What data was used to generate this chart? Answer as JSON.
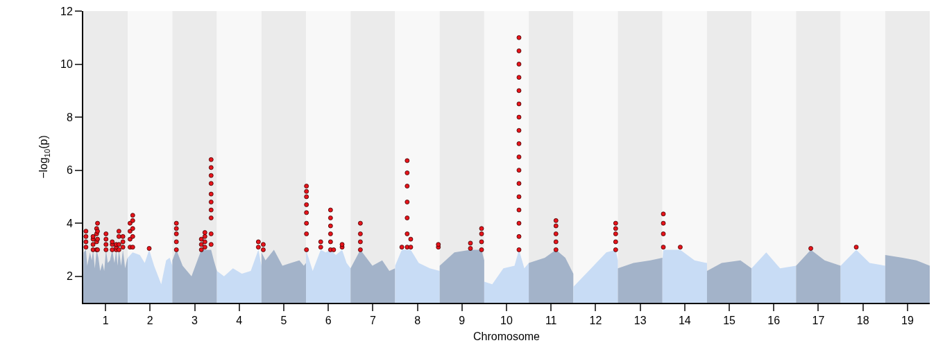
{
  "chart_data": {
    "type": "scatter",
    "xlabel": "Chromosome",
    "ylabel": "−log$_{10}$(p)",
    "xlim": [
      0.5,
      19.5
    ],
    "ylim": [
      1,
      12
    ],
    "xticks": [
      1,
      2,
      3,
      4,
      5,
      6,
      7,
      8,
      9,
      10,
      11,
      12,
      13,
      14,
      15,
      16,
      17,
      18,
      19
    ],
    "yticks": [
      2,
      4,
      6,
      8,
      10,
      12
    ],
    "grid": false,
    "bands": [
      {
        "axis": "x",
        "from": 0.5,
        "to": 1.5,
        "color": "#ebebeb"
      },
      {
        "axis": "x",
        "from": 1.5,
        "to": 2.5,
        "color": "#f8f8f8"
      },
      {
        "axis": "x",
        "from": 2.5,
        "to": 3.5,
        "color": "#ebebeb"
      },
      {
        "axis": "x",
        "from": 3.5,
        "to": 4.5,
        "color": "#f8f8f8"
      },
      {
        "axis": "x",
        "from": 4.5,
        "to": 5.5,
        "color": "#ebebeb"
      },
      {
        "axis": "x",
        "from": 5.5,
        "to": 6.5,
        "color": "#f8f8f8"
      },
      {
        "axis": "x",
        "from": 6.5,
        "to": 7.5,
        "color": "#ebebeb"
      },
      {
        "axis": "x",
        "from": 7.5,
        "to": 8.5,
        "color": "#f8f8f8"
      },
      {
        "axis": "x",
        "from": 8.5,
        "to": 9.5,
        "color": "#ebebeb"
      },
      {
        "axis": "x",
        "from": 9.5,
        "to": 10.5,
        "color": "#f8f8f8"
      },
      {
        "axis": "x",
        "from": 10.5,
        "to": 11.5,
        "color": "#ebebeb"
      },
      {
        "axis": "x",
        "from": 11.5,
        "to": 12.5,
        "color": "#f8f8f8"
      },
      {
        "axis": "x",
        "from": 12.5,
        "to": 13.5,
        "color": "#ebebeb"
      },
      {
        "axis": "x",
        "from": 13.5,
        "to": 14.5,
        "color": "#f8f8f8"
      },
      {
        "axis": "x",
        "from": 14.5,
        "to": 15.5,
        "color": "#ebebeb"
      },
      {
        "axis": "x",
        "from": 15.5,
        "to": 16.5,
        "color": "#f8f8f8"
      },
      {
        "axis": "x",
        "from": 16.5,
        "to": 17.5,
        "color": "#ebebeb"
      },
      {
        "axis": "x",
        "from": 17.5,
        "to": 18.5,
        "color": "#f8f8f8"
      },
      {
        "axis": "x",
        "from": 18.5,
        "to": 19.5,
        "color": "#ebebeb"
      }
    ],
    "series": [
      {
        "type": "area",
        "color": "#a3b3c9",
        "x": [
          0.5,
          0.51,
          0.56,
          0.59,
          0.65,
          0.69,
          0.72,
          0.76,
          0.8,
          0.84,
          0.88,
          0.93,
          0.97,
          1.01,
          1.05,
          1.1,
          1.15,
          1.2,
          1.24,
          1.27,
          1.3,
          1.35,
          1.39,
          1.44,
          1.49,
          1.5
        ],
        "values": [
          1.5,
          2.9,
          3.0,
          2.4,
          2.9,
          2.6,
          3.0,
          2.3,
          3.0,
          2.7,
          2.2,
          2.5,
          2.2,
          3.0,
          2.5,
          2.6,
          3.0,
          2.5,
          3.0,
          2.4,
          3.0,
          2.4,
          3.0,
          2.3,
          2.7,
          2.6
        ]
      },
      {
        "type": "area",
        "color": "#c8dcf5",
        "x": [
          1.5,
          1.61,
          1.77,
          1.88,
          1.98,
          2.09,
          2.25,
          2.36,
          2.44,
          2.5
        ],
        "values": [
          2.7,
          2.9,
          2.8,
          2.5,
          3.0,
          2.4,
          1.7,
          2.6,
          2.7,
          2.4
        ]
      },
      {
        "type": "area",
        "color": "#a3b3c9",
        "x": [
          2.5,
          2.59,
          2.73,
          2.93,
          3.15,
          3.23,
          3.37,
          3.43,
          3.5
        ],
        "values": [
          2.6,
          3.0,
          2.4,
          2.0,
          3.0,
          3.0,
          3.0,
          2.6,
          2.2
        ]
      },
      {
        "type": "area",
        "color": "#c8dcf5",
        "x": [
          3.5,
          3.66,
          3.86,
          4.06,
          4.26,
          4.43,
          4.5
        ],
        "values": [
          2.2,
          2.0,
          2.3,
          2.1,
          2.2,
          3.0,
          2.4
        ]
      },
      {
        "type": "area",
        "color": "#a3b3c9",
        "x": [
          4.5,
          4.59,
          4.78,
          4.97,
          5.16,
          5.35,
          5.45,
          5.5
        ],
        "values": [
          2.9,
          2.6,
          3.0,
          2.4,
          2.5,
          2.6,
          2.4,
          2.5
        ]
      },
      {
        "type": "area",
        "color": "#c8dcf5",
        "x": [
          5.5,
          5.65,
          5.83,
          5.94,
          6.05,
          6.17,
          6.31,
          6.41,
          6.5
        ],
        "values": [
          3.0,
          2.2,
          3.0,
          2.9,
          3.0,
          2.8,
          3.0,
          2.5,
          2.3
        ]
      },
      {
        "type": "area",
        "color": "#a3b3c9",
        "x": [
          6.5,
          6.72,
          6.99,
          7.21,
          7.37,
          7.5
        ],
        "values": [
          2.3,
          3.0,
          2.4,
          2.6,
          2.2,
          2.3
        ]
      },
      {
        "type": "area",
        "color": "#c8dcf5",
        "x": [
          7.5,
          7.65,
          7.77,
          7.85,
          8.03,
          8.28,
          8.5
        ],
        "values": [
          2.4,
          3.0,
          3.0,
          3.0,
          2.5,
          2.3,
          2.2
        ]
      },
      {
        "type": "area",
        "color": "#a3b3c9",
        "x": [
          8.5,
          8.83,
          9.19,
          9.44,
          9.5
        ],
        "values": [
          2.4,
          2.9,
          3.0,
          3.0,
          2.6
        ]
      },
      {
        "type": "area",
        "color": "#c8dcf5",
        "x": [
          9.5,
          9.68,
          9.93,
          10.18,
          10.28,
          10.4,
          10.5
        ],
        "values": [
          1.8,
          1.7,
          2.3,
          2.4,
          3.0,
          2.3,
          2.5
        ]
      },
      {
        "type": "area",
        "color": "#a3b3c9",
        "x": [
          10.5,
          10.86,
          11.11,
          11.32,
          11.5
        ],
        "values": [
          2.5,
          2.7,
          3.0,
          2.7,
          2.1
        ]
      },
      {
        "type": "area",
        "color": "#c8dcf5",
        "x": [
          11.5,
          11.9,
          12.24,
          12.45,
          12.5
        ],
        "values": [
          1.6,
          2.3,
          2.9,
          3.0,
          2.6
        ]
      },
      {
        "type": "area",
        "color": "#a3b3c9",
        "x": [
          12.5,
          12.85,
          13.23,
          13.5
        ],
        "values": [
          2.3,
          2.5,
          2.6,
          2.7
        ]
      },
      {
        "type": "area",
        "color": "#c8dcf5",
        "x": [
          13.5,
          13.52,
          13.9,
          14.22,
          14.5
        ],
        "values": [
          2.6,
          3.0,
          3.0,
          2.6,
          2.5
        ]
      },
      {
        "type": "area",
        "color": "#a3b3c9",
        "x": [
          14.5,
          14.83,
          15.25,
          15.5
        ],
        "values": [
          2.2,
          2.5,
          2.6,
          2.3
        ]
      },
      {
        "type": "area",
        "color": "#c8dcf5",
        "x": [
          15.5,
          15.83,
          16.14,
          16.5
        ],
        "values": [
          2.3,
          2.9,
          2.3,
          2.4
        ]
      },
      {
        "type": "area",
        "color": "#a3b3c9",
        "x": [
          16.5,
          16.83,
          17.14,
          17.5
        ],
        "values": [
          2.4,
          3.0,
          2.6,
          2.4
        ]
      },
      {
        "type": "area",
        "color": "#c8dcf5",
        "x": [
          17.5,
          17.85,
          18.15,
          18.5
        ],
        "values": [
          2.4,
          3.0,
          2.5,
          2.4
        ]
      },
      {
        "type": "area",
        "color": "#a3b3c9",
        "x": [
          18.5,
          18.89,
          19.2,
          19.5
        ],
        "values": [
          2.8,
          2.7,
          2.6,
          2.4
        ]
      },
      {
        "color": "#e8141b",
        "marker": "circle",
        "x": [
          0.56,
          0.56,
          0.56,
          0.56,
          0.72,
          0.72,
          0.72,
          0.72,
          0.8,
          0.8,
          0.8,
          0.8,
          0.82,
          0.82,
          0.82,
          0.82,
          1.01,
          1.01,
          1.01,
          1.01,
          1.15,
          1.15,
          1.15,
          1.24,
          1.24,
          1.24,
          1.3,
          1.3,
          1.3,
          1.3,
          1.39,
          1.39,
          1.39,
          1.55,
          1.55,
          1.55,
          1.55,
          1.61,
          1.61,
          1.61,
          1.61,
          1.61,
          1.98,
          2.59,
          2.59,
          2.59,
          2.59,
          2.59,
          3.15,
          3.15,
          3.15,
          3.23,
          3.23,
          3.23,
          3.23,
          3.37,
          3.37,
          3.37,
          3.37,
          3.37,
          3.37,
          3.37,
          3.37,
          3.37,
          3.37,
          4.43,
          4.43,
          4.54,
          4.54,
          5.51,
          5.51,
          5.51,
          5.51,
          5.51,
          5.51,
          5.51,
          5.51,
          5.83,
          5.83,
          6.05,
          6.05,
          6.05,
          6.05,
          6.05,
          6.05,
          6.12,
          6.31,
          6.31,
          6.72,
          6.72,
          6.72,
          6.72,
          7.65,
          7.77,
          7.77,
          7.77,
          7.77,
          7.77,
          7.77,
          7.77,
          7.85,
          7.85,
          8.47,
          8.47,
          9.19,
          9.19,
          9.44,
          9.44,
          9.44,
          9.44,
          10.28,
          10.28,
          10.28,
          10.28,
          10.28,
          10.28,
          10.28,
          10.28,
          10.28,
          10.28,
          10.28,
          10.28,
          10.28,
          10.28,
          10.28,
          10.28,
          10.28,
          11.11,
          11.11,
          11.11,
          11.11,
          11.11,
          12.45,
          12.45,
          12.45,
          12.45,
          12.45,
          13.52,
          13.52,
          13.52,
          13.52,
          13.9,
          16.83,
          17.85
        ],
        "values": [
          3.1,
          3.3,
          3.5,
          3.7,
          3.0,
          3.2,
          3.4,
          3.5,
          3.0,
          3.3,
          3.6,
          3.8,
          3.0,
          3.4,
          3.7,
          4.0,
          3.0,
          3.2,
          3.4,
          3.6,
          3.0,
          3.2,
          3.3,
          3.0,
          3.1,
          3.2,
          3.0,
          3.2,
          3.5,
          3.7,
          3.1,
          3.3,
          3.5,
          3.1,
          3.4,
          3.7,
          4.0,
          3.1,
          3.5,
          3.8,
          4.1,
          4.3,
          3.05,
          3.0,
          3.3,
          3.6,
          3.8,
          4.0,
          3.0,
          3.2,
          3.4,
          3.1,
          3.3,
          3.5,
          3.65,
          3.2,
          3.6,
          4.2,
          4.5,
          4.8,
          5.1,
          5.5,
          5.8,
          6.1,
          6.4,
          3.1,
          3.3,
          3.0,
          3.2,
          3.0,
          3.6,
          4.0,
          4.4,
          4.7,
          5.0,
          5.2,
          5.4,
          3.1,
          3.3,
          3.0,
          3.3,
          3.6,
          3.9,
          4.2,
          4.5,
          3.0,
          3.1,
          3.2,
          3.0,
          3.3,
          3.6,
          4.0,
          3.1,
          3.1,
          3.6,
          4.2,
          4.8,
          5.4,
          5.9,
          6.36,
          3.1,
          3.4,
          3.1,
          3.2,
          3.05,
          3.25,
          3.0,
          3.3,
          3.6,
          3.8,
          3.0,
          3.5,
          4.0,
          4.5,
          5.0,
          5.5,
          6.0,
          6.5,
          7.0,
          7.5,
          8.0,
          8.5,
          9.0,
          9.5,
          10.0,
          10.5,
          11.0,
          3.0,
          3.3,
          3.6,
          3.9,
          4.1,
          3.0,
          3.3,
          3.6,
          3.8,
          4.0,
          3.1,
          3.6,
          4.0,
          4.35,
          3.1,
          3.05,
          3.1
        ]
      }
    ]
  }
}
